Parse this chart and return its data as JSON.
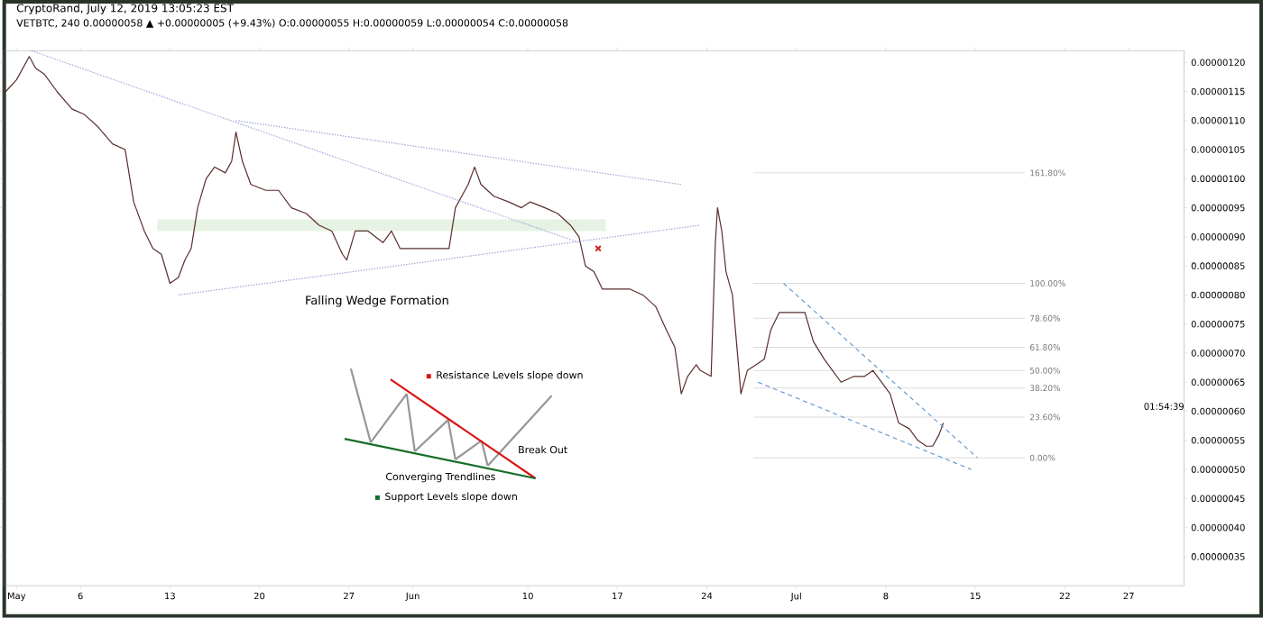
{
  "chart_data": {
    "type": "line",
    "title": "CryptoRand, July 12, 2019 13:05:23 EST",
    "subtitle": "VETBTC, 240 0.00000058 ▲ +0.00000005 (+9.43%) O:0.00000055 H:0.00000059 L:0.00000054 C:0.00000058",
    "annotations": [
      "Falling Wedge Formation",
      "Resistance Levels  slope down",
      "Break Out",
      "Converging Trendlines",
      "Support Levels slope down",
      {
        "text": "161.80%",
        "x": "2019-07-19T00:00",
        "y": 1.01e-06
      },
      {
        "text": "100.00%",
        "x": "2019-07-19T00:00",
        "y": 8.2e-07
      },
      {
        "text": "78.60%",
        "x": "2019-07-19T00:00",
        "y": 7.6e-07
      },
      {
        "text": "61.80%",
        "x": "2019-07-19T00:00",
        "y": 7.1e-07
      },
      {
        "text": "50.00%",
        "x": "2019-07-19T00:00",
        "y": 6.7e-07
      },
      {
        "text": "38.20%",
        "x": "2019-07-19T00:00",
        "y": 6.4e-07
      },
      {
        "text": "23.60%",
        "x": "2019-07-19T00:00",
        "y": 5.9e-07
      },
      {
        "text": "0.00%",
        "x": "2019-07-19T00:00",
        "y": 5.2e-07
      },
      "01:54:39"
    ],
    "series": [
      {
        "color": "#5a2e2e",
        "line_style": "solid",
        "x": [
          "2019-04-30T04:00",
          "2019-05-01T00:00",
          "2019-05-02T00:00",
          "2019-05-02T12:00",
          "2019-05-03T04:00",
          "2019-05-04T04:00",
          "2019-05-05T08:00",
          "2019-05-06T08:00",
          "2019-05-07T08:00",
          "2019-05-08T12:00",
          "2019-05-09T12:00",
          "2019-05-10T04:00",
          "2019-05-11T00:00",
          "2019-05-11T16:00",
          "2019-05-12T08:00",
          "2019-05-13T00:00",
          "2019-05-13T16:00",
          "2019-05-14T04:00",
          "2019-05-14T16:00",
          "2019-05-15T04:00",
          "2019-05-15T20:00",
          "2019-05-16T12:00",
          "2019-05-17T08:00",
          "2019-05-17T20:00",
          "2019-05-18T04:00",
          "2019-05-18T16:00",
          "2019-05-19T08:00",
          "2019-05-20T12:00",
          "2019-05-21T12:00",
          "2019-05-22T12:00",
          "2019-05-23T16:00",
          "2019-05-24T16:00",
          "2019-05-25T16:00",
          "2019-05-26T12:00",
          "2019-05-26T20:00",
          "2019-05-27T12:00",
          "2019-05-28T12:00",
          "2019-05-29T16:00",
          "2019-05-30T08:00",
          "2019-05-31T00:00",
          "2019-05-31T16:00",
          "2019-06-01T20:00",
          "2019-06-02T20:00",
          "2019-06-03T20:00",
          "2019-06-04T08:00",
          "2019-06-05T08:00",
          "2019-06-05T20:00",
          "2019-06-06T08:00",
          "2019-06-07T08:00",
          "2019-06-08T12:00",
          "2019-06-09T12:00",
          "2019-06-10T04:00",
          "2019-06-11T08:00",
          "2019-06-12T08:00",
          "2019-06-13T08:00",
          "2019-06-14T00:00",
          "2019-06-14T12:00",
          "2019-06-15T04:00",
          "2019-06-15T20:00",
          "2019-06-16T20:00",
          "2019-06-18T00:00",
          "2019-06-19T00:00",
          "2019-06-20T00:00",
          "2019-06-20T20:00",
          "2019-06-21T12:00",
          "2019-06-22T00:00",
          "2019-06-22T12:00",
          "2019-06-23T04:00",
          "2019-06-23T12:00",
          "2019-06-24T08:00",
          "2019-06-24T16:00",
          "2019-06-24T20:00",
          "2019-06-25T04:00",
          "2019-06-25T12:00",
          "2019-06-26T00:00",
          "2019-06-26T16:00",
          "2019-06-27T04:00",
          "2019-06-27T20:00",
          "2019-06-28T12:00",
          "2019-06-29T00:00",
          "2019-06-29T16:00",
          "2019-06-30T16:00",
          "2019-07-01T16:00",
          "2019-07-02T08:00",
          "2019-07-03T04:00",
          "2019-07-03T20:00",
          "2019-07-04T12:00",
          "2019-07-05T12:00",
          "2019-07-06T08:00",
          "2019-07-07T00:00",
          "2019-07-07T16:00",
          "2019-07-08T08:00",
          "2019-07-09T00:00",
          "2019-07-09T20:00",
          "2019-07-10T12:00",
          "2019-07-11T04:00",
          "2019-07-11T16:00",
          "2019-07-12T04:00",
          "2019-07-12T12:00"
        ],
        "values": [
          1.15e-06,
          1.17e-06,
          1.21e-06,
          1.19e-06,
          1.18e-06,
          1.15e-06,
          1.12e-06,
          1.11e-06,
          1.09e-06,
          1.06e-06,
          1.05e-06,
          9.6e-07,
          9.1e-07,
          8.8e-07,
          8.7e-07,
          8.2e-07,
          8.3e-07,
          8.6e-07,
          8.8e-07,
          9.5e-07,
          1e-06,
          1.02e-06,
          1.01e-06,
          1.03e-06,
          1.08e-06,
          1.03e-06,
          9.9e-07,
          9.8e-07,
          9.8e-07,
          9.5e-07,
          9.4e-07,
          9.2e-07,
          9.1e-07,
          8.7e-07,
          8.6e-07,
          9.1e-07,
          9.1e-07,
          8.9e-07,
          9.1e-07,
          8.8e-07,
          8.8e-07,
          8.8e-07,
          8.8e-07,
          8.8e-07,
          9.5e-07,
          9.9e-07,
          1.02e-06,
          9.9e-07,
          9.7e-07,
          9.6e-07,
          9.5e-07,
          9.6e-07,
          9.5e-07,
          9.4e-07,
          9.2e-07,
          9e-07,
          8.5e-07,
          8.4e-07,
          8.1e-07,
          8.1e-07,
          8.1e-07,
          8e-07,
          7.8e-07,
          7.4e-07,
          7.1e-07,
          6.3e-07,
          6.6e-07,
          6.8e-07,
          6.7e-07,
          6.6e-07,
          8.9e-07,
          9.5e-07,
          9.1e-07,
          8.4e-07,
          8e-07,
          6.3e-07,
          6.7e-07,
          6.8e-07,
          6.9e-07,
          7.4e-07,
          7.7e-07,
          7.7e-07,
          7.7e-07,
          7.2e-07,
          6.9e-07,
          6.7e-07,
          6.5e-07,
          6.6e-07,
          6.6e-07,
          6.7e-07,
          6.5e-07,
          6.3e-07,
          5.8e-07,
          5.7e-07,
          5.5e-07,
          5.4e-07,
          5.4e-07,
          5.6e-07,
          5.8e-07
        ]
      },
      {
        "type": "line",
        "color": "#9aa8d8",
        "line_style": "dotted",
        "x": [
          "2019-05-02T04:00",
          "2019-06-14T00:00"
        ],
        "values": [
          1.22e-06,
          8.9e-07
        ]
      },
      {
        "type": "line",
        "color": "#9aa8d8",
        "line_style": "dotted",
        "x": [
          "2019-05-18T04:00",
          "2019-06-22T00:00"
        ],
        "values": [
          1.1e-06,
          9.9e-07
        ]
      },
      {
        "type": "line",
        "color": "#9aa8d8",
        "line_style": "dotted",
        "x": [
          "2019-05-13T16:00",
          "2019-06-23T12:00"
        ],
        "values": [
          8e-07,
          9.2e-07
        ]
      },
      {
        "type": "line",
        "color": "#6a9ad0",
        "line_style": "dashed",
        "x": [
          "2019-06-28T00:00",
          "2019-07-14T16:00"
        ],
        "values": [
          6.5e-07,
          5e-07
        ]
      },
      {
        "type": "line",
        "color": "#6a9ad0",
        "line_style": "dashed",
        "x": [
          "2019-06-30T00:00",
          "2019-07-15T04:00"
        ],
        "values": [
          8.2e-07,
          5.2e-07
        ]
      },
      {
        "type": "scatter",
        "marker": "cross",
        "color": "#cc1f1f",
        "x": [
          "2019-06-15T12:00"
        ],
        "values": [
          8.8e-07
        ]
      }
    ],
    "ref_lines": [
      {
        "axis": "y",
        "value": 1.01e-06,
        "color": "#dcdcdc"
      },
      {
        "axis": "y",
        "value": 8.2e-07,
        "color": "#dcdcdc"
      },
      {
        "axis": "y",
        "value": 7.6e-07,
        "color": "#dcdcdc"
      },
      {
        "axis": "y",
        "value": 7.1e-07,
        "color": "#dcdcdc"
      },
      {
        "axis": "y",
        "value": 6.7e-07,
        "color": "#dcdcdc"
      },
      {
        "axis": "y",
        "value": 6.4e-07,
        "color": "#dcdcdc"
      },
      {
        "axis": "y",
        "value": 5.9e-07,
        "color": "#dcdcdc"
      },
      {
        "axis": "y",
        "value": 5.2e-07,
        "color": "#dcdcdc"
      }
    ],
    "bands": [
      {
        "axis": "y",
        "from": 9.1e-07,
        "to": 9.3e-07,
        "color": "#e6f2e3"
      }
    ],
    "xlim": [
      "2019-04-30T00:00",
      "2019-07-31T08:00"
    ],
    "xticks": [
      {
        "value": "2019-05-01",
        "label": "May"
      },
      {
        "value": "2019-05-06",
        "label": "6"
      },
      {
        "value": "2019-05-13",
        "label": "13"
      },
      {
        "value": "2019-05-20",
        "label": "20"
      },
      {
        "value": "2019-05-27",
        "label": "27"
      },
      {
        "value": "2019-06-01",
        "label": "Jun"
      },
      {
        "value": "2019-06-10",
        "label": "10"
      },
      {
        "value": "2019-06-17",
        "label": "17"
      },
      {
        "value": "2019-06-24",
        "label": "24"
      },
      {
        "value": "2019-07-01",
        "label": "Jul"
      },
      {
        "value": "2019-07-08",
        "label": "8"
      },
      {
        "value": "2019-07-15",
        "label": "15"
      },
      {
        "value": "2019-07-22",
        "label": "22"
      },
      {
        "value": "2019-07-27",
        "label": "27"
      }
    ],
    "ylim": [
      3e-07,
      1.22e-06
    ],
    "yticks": [
      {
        "value": 3.5e-07,
        "label": "0.00000035"
      },
      {
        "value": 4e-07,
        "label": "0.00000040"
      },
      {
        "value": 4.5e-07,
        "label": "0.00000045"
      },
      {
        "value": 5e-07,
        "label": "0.00000050"
      },
      {
        "value": 5.5e-07,
        "label": "0.00000055"
      },
      {
        "value": 6e-07,
        "label": "0.00000060"
      },
      {
        "value": 6.5e-07,
        "label": "0.00000065"
      },
      {
        "value": 7e-07,
        "label": "0.00000070"
      },
      {
        "value": 7.5e-07,
        "label": "0.00000075"
      },
      {
        "value": 8e-07,
        "label": "0.00000080"
      },
      {
        "value": 8.5e-07,
        "label": "0.00000085"
      },
      {
        "value": 9e-07,
        "label": "0.00000090"
      },
      {
        "value": 9.5e-07,
        "label": "0.00000095"
      },
      {
        "value": 1e-06,
        "label": "0.00000100"
      },
      {
        "value": 1.05e-06,
        "label": "0.00000105"
      },
      {
        "value": 1.1e-06,
        "label": "0.00000110"
      },
      {
        "value": 1.15e-06,
        "label": "0.00000115"
      },
      {
        "value": 1.2e-06,
        "label": "0.00000120"
      }
    ]
  }
}
